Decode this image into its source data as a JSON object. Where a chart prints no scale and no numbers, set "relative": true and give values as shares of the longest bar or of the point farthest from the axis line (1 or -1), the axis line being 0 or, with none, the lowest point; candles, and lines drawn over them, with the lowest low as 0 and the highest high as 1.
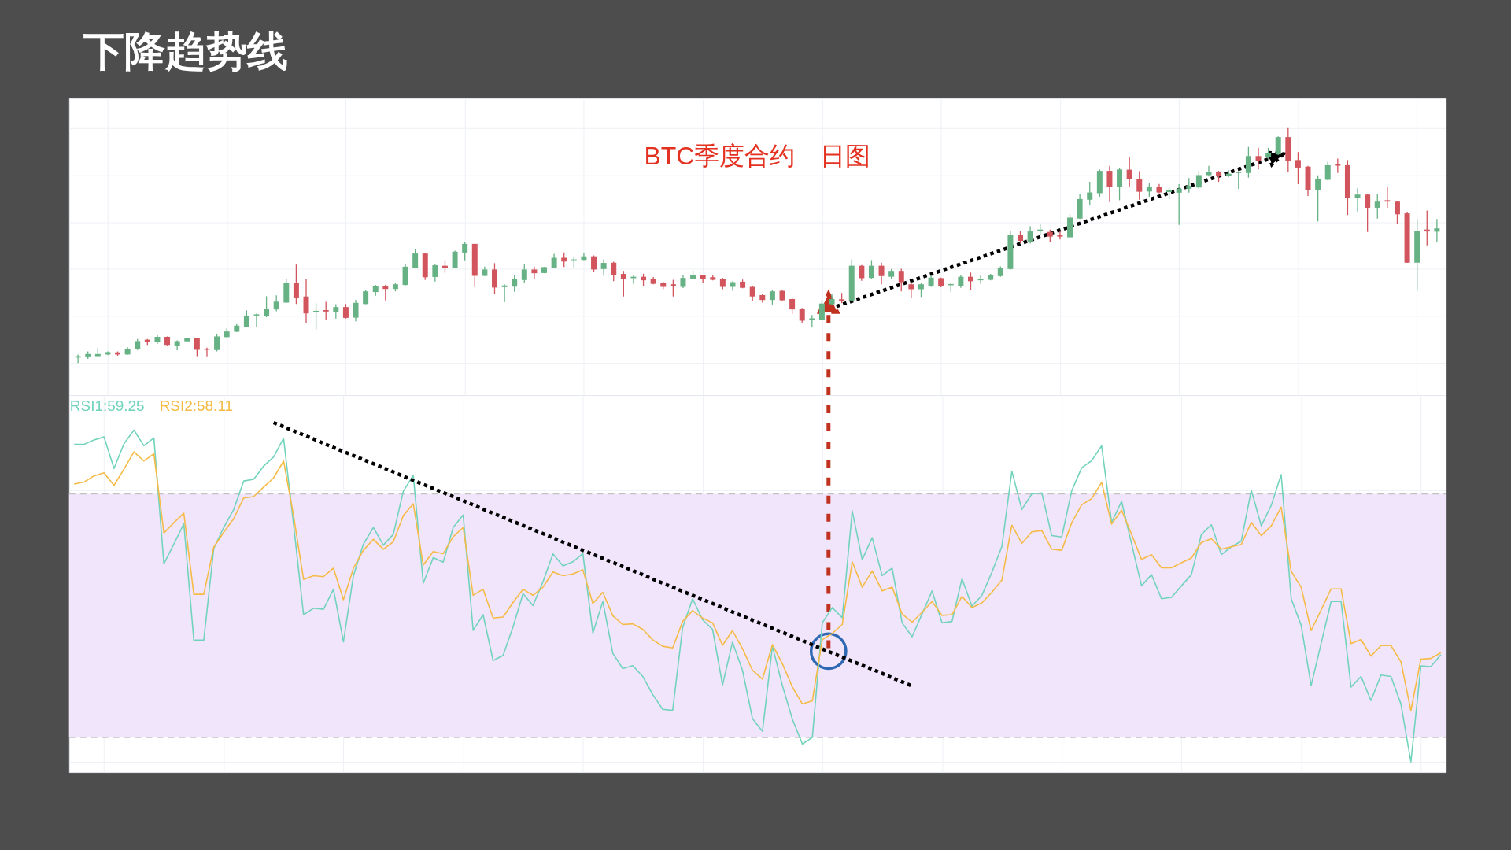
{
  "chart_data": [
    {
      "type": "candlestick",
      "title": "下降趋势线",
      "annotations": [
        "BTC季度合约　日图"
      ],
      "relative": true,
      "grid": true,
      "tick_labels": false,
      "categories": [
        null,
        null,
        null,
        null,
        null,
        null,
        null,
        null,
        null,
        null,
        null,
        null,
        null,
        null,
        null,
        null,
        null,
        null,
        null,
        null,
        null,
        null,
        null,
        null,
        null,
        null,
        null,
        null,
        null,
        null,
        null,
        null,
        null,
        null,
        null,
        null,
        null,
        null,
        null,
        null,
        null,
        null,
        null,
        null,
        null,
        null,
        null,
        null,
        null,
        null,
        null,
        null,
        null,
        null,
        null,
        null,
        null,
        null,
        null,
        null,
        null,
        null,
        null,
        null,
        null,
        null,
        null,
        null,
        null,
        null,
        null,
        null,
        null,
        null,
        null,
        null,
        null,
        null,
        null,
        null,
        null,
        null,
        null,
        null,
        null,
        null,
        null,
        null,
        null,
        null,
        null,
        null,
        null,
        null,
        null,
        null,
        null,
        null,
        null,
        null,
        null,
        null,
        null,
        null,
        null,
        null,
        null,
        null,
        null,
        null,
        null,
        null,
        null,
        null,
        null,
        null,
        null,
        null,
        null,
        null,
        null,
        null,
        null,
        null,
        null,
        null,
        null,
        null,
        null,
        null,
        null,
        null,
        null,
        null,
        null,
        null,
        null,
        null
      ],
      "ohlc": [
        [
          0.023,
          0.036,
          0,
          0.029
        ],
        [
          0.028,
          0.049,
          0.017,
          0.038
        ],
        [
          0.029,
          0.064,
          0.028,
          0.038
        ],
        [
          0.036,
          0.049,
          0.033,
          0.046
        ],
        [
          0.045,
          0.049,
          0.031,
          0.036
        ],
        [
          0.036,
          0.067,
          0.035,
          0.061
        ],
        [
          0.058,
          0.102,
          0.055,
          0.093
        ],
        [
          0.099,
          0.102,
          0.077,
          0.09
        ],
        [
          0.091,
          0.118,
          0.081,
          0.111
        ],
        [
          0.111,
          0.113,
          0.074,
          0.077
        ],
        [
          0.074,
          0.096,
          0.054,
          0.093
        ],
        [
          0.092,
          0.108,
          0.09,
          0.105
        ],
        [
          0.106,
          0.108,
          0.029,
          0.056
        ],
        [
          0.061,
          0.065,
          0.028,
          0.056
        ],
        [
          0.055,
          0.123,
          0.049,
          0.113
        ],
        [
          0.11,
          0.147,
          0.108,
          0.134
        ],
        [
          0.133,
          0.166,
          0.131,
          0.159
        ],
        [
          0.154,
          0.224,
          0.151,
          0.202
        ],
        [
          0.202,
          0.21,
          0.154,
          0.207
        ],
        [
          0.2,
          0.284,
          0.195,
          0.23
        ],
        [
          0.228,
          0.288,
          0.22,
          0.261
        ],
        [
          0.257,
          0.359,
          0.256,
          0.339
        ],
        [
          0.339,
          0.419,
          0.251,
          0.279
        ],
        [
          0.283,
          0.357,
          0.17,
          0.211
        ],
        [
          0.215,
          0.254,
          0.142,
          0.222
        ],
        [
          0.225,
          0.26,
          0.183,
          0.219
        ],
        [
          0.218,
          0.25,
          0.189,
          0.238
        ],
        [
          0.238,
          0.251,
          0.189,
          0.192
        ],
        [
          0.193,
          0.269,
          0.177,
          0.256
        ],
        [
          0.251,
          0.312,
          0.25,
          0.305
        ],
        [
          0.302,
          0.332,
          0.286,
          0.328
        ],
        [
          0.329,
          0.333,
          0.266,
          0.315
        ],
        [
          0.315,
          0.341,
          0.305,
          0.335
        ],
        [
          0.332,
          0.42,
          0.33,
          0.41
        ],
        [
          0.405,
          0.484,
          0.403,
          0.466
        ],
        [
          0.466,
          0.467,
          0.353,
          0.365
        ],
        [
          0.366,
          0.423,
          0.347,
          0.416
        ],
        [
          0.414,
          0.438,
          0.384,
          0.405
        ],
        [
          0.405,
          0.478,
          0.403,
          0.474
        ],
        [
          0.47,
          0.517,
          0.437,
          0.507
        ],
        [
          0.507,
          0.508,
          0.323,
          0.371
        ],
        [
          0.371,
          0.41,
          0.37,
          0.398
        ],
        [
          0.398,
          0.425,
          0.292,
          0.321
        ],
        [
          0.323,
          0.335,
          0.259,
          0.33
        ],
        [
          0.325,
          0.375,
          0.303,
          0.359
        ],
        [
          0.353,
          0.421,
          0.342,
          0.398
        ],
        [
          0.398,
          0.41,
          0.356,
          0.382
        ],
        [
          0.383,
          0.409,
          0.382,
          0.408
        ],
        [
          0.405,
          0.465,
          0.404,
          0.448
        ],
        [
          0.448,
          0.471,
          0.409,
          0.432
        ],
        [
          0.438,
          0.452,
          0.404,
          0.441
        ],
        [
          0.439,
          0.466,
          0.438,
          0.454
        ],
        [
          0.454,
          0.458,
          0.387,
          0.398
        ],
        [
          0.4,
          0.441,
          0.372,
          0.426
        ],
        [
          0.427,
          0.431,
          0.348,
          0.376
        ],
        [
          0.379,
          0.392,
          0.283,
          0.359
        ],
        [
          0.361,
          0.376,
          0.337,
          0.367
        ],
        [
          0.367,
          0.38,
          0.329,
          0.352
        ],
        [
          0.357,
          0.366,
          0.335,
          0.337
        ],
        [
          0.339,
          0.346,
          0.315,
          0.324
        ],
        [
          0.335,
          0.354,
          0.283,
          0.328
        ],
        [
          0.324,
          0.376,
          0.319,
          0.362
        ],
        [
          0.359,
          0.392,
          0.357,
          0.374
        ],
        [
          0.374,
          0.376,
          0.341,
          0.358
        ],
        [
          0.365,
          0.374,
          0.352,
          0.354
        ],
        [
          0.359,
          0.362,
          0.314,
          0.324
        ],
        [
          0.324,
          0.348,
          0.307,
          0.344
        ],
        [
          0.346,
          0.355,
          0.318,
          0.32
        ],
        [
          0.324,
          0.329,
          0.262,
          0.283
        ],
        [
          0.289,
          0.294,
          0.257,
          0.268
        ],
        [
          0.268,
          0.31,
          0.249,
          0.305
        ],
        [
          0.307,
          0.311,
          0.263,
          0.267
        ],
        [
          0.272,
          0.28,
          0.208,
          0.228
        ],
        [
          0.23,
          0.234,
          0.171,
          0.18
        ],
        [
          0.185,
          0.204,
          0.151,
          0.19
        ],
        [
          0.182,
          0.266,
          0.181,
          0.253
        ],
        [
          0.25,
          0.294,
          0.246,
          0.272
        ],
        [
          0.271,
          0.298,
          0.255,
          0.263
        ],
        [
          0.266,
          0.441,
          0.263,
          0.414
        ],
        [
          0.414,
          0.417,
          0.35,
          0.361
        ],
        [
          0.362,
          0.438,
          0.359,
          0.414
        ],
        [
          0.414,
          0.427,
          0.335,
          0.37
        ],
        [
          0.367,
          0.4,
          0.357,
          0.392
        ],
        [
          0.392,
          0.401,
          0.305,
          0.344
        ],
        [
          0.335,
          0.344,
          0.276,
          0.314
        ],
        [
          0.314,
          0.34,
          0.281,
          0.335
        ],
        [
          0.329,
          0.374,
          0.324,
          0.363
        ],
        [
          0.361,
          0.363,
          0.322,
          0.329
        ],
        [
          0.331,
          0.339,
          0.301,
          0.336
        ],
        [
          0.329,
          0.376,
          0.32,
          0.367
        ],
        [
          0.367,
          0.385,
          0.309,
          0.348
        ],
        [
          0.352,
          0.374,
          0.337,
          0.359
        ],
        [
          0.354,
          0.379,
          0.352,
          0.374
        ],
        [
          0.37,
          0.411,
          0.367,
          0.404
        ],
        [
          0.4,
          0.56,
          0.397,
          0.546
        ],
        [
          0.544,
          0.56,
          0.51,
          0.52
        ],
        [
          0.517,
          0.582,
          0.508,
          0.56
        ],
        [
          0.56,
          0.591,
          0.544,
          0.568
        ],
        [
          0.558,
          0.568,
          0.514,
          0.538
        ],
        [
          0.546,
          0.563,
          0.526,
          0.538
        ],
        [
          0.535,
          0.634,
          0.534,
          0.619
        ],
        [
          0.615,
          0.72,
          0.613,
          0.698
        ],
        [
          0.695,
          0.771,
          0.673,
          0.726
        ],
        [
          0.723,
          0.824,
          0.708,
          0.818
        ],
        [
          0.818,
          0.839,
          0.685,
          0.751
        ],
        [
          0.751,
          0.829,
          0.693,
          0.824
        ],
        [
          0.823,
          0.875,
          0.751,
          0.783
        ],
        [
          0.784,
          0.817,
          0.695,
          0.729
        ],
        [
          0.73,
          0.765,
          0.708,
          0.749
        ],
        [
          0.749,
          0.762,
          0.723,
          0.726
        ],
        [
          0.728,
          0.749,
          0.697,
          0.735
        ],
        [
          0.725,
          0.761,
          0.588,
          0.742
        ],
        [
          0.742,
          0.787,
          0.725,
          0.754
        ],
        [
          0.747,
          0.818,
          0.741,
          0.8
        ],
        [
          0.8,
          0.839,
          0.794,
          0.812
        ],
        [
          0.812,
          0.818,
          0.771,
          0.798
        ],
        [
          0.798,
          0.821,
          0.792,
          0.806
        ],
        [
          0.809,
          0.815,
          0.741,
          0.812
        ],
        [
          0.809,
          0.92,
          0.789,
          0.881
        ],
        [
          0.881,
          0.916,
          0.824,
          0.86
        ],
        [
          0.878,
          0.916,
          0.869,
          0.892
        ],
        [
          0.888,
          0.965,
          0.885,
          0.962
        ],
        [
          0.962,
          1,
          0.812,
          0.86
        ],
        [
          0.864,
          0.898,
          0.761,
          0.832
        ],
        [
          0.836,
          0.839,
          0.711,
          0.735
        ],
        [
          0.735,
          0.799,
          0.603,
          0.785
        ],
        [
          0.78,
          0.857,
          0.777,
          0.842
        ],
        [
          0.848,
          0.87,
          0.809,
          0.84
        ],
        [
          0.842,
          0.864,
          0.63,
          0.701
        ],
        [
          0.701,
          0.744,
          0.645,
          0.717
        ],
        [
          0.717,
          0.719,
          0.558,
          0.661
        ],
        [
          0.661,
          0.72,
          0.615,
          0.687
        ],
        [
          0.693,
          0.749,
          0.661,
          0.687
        ],
        [
          0.687,
          0.689,
          0.591,
          0.633
        ],
        [
          0.637,
          0.642,
          0.427,
          0.427
        ],
        [
          0.427,
          0.613,
          0.308,
          0.562
        ],
        [
          0.568,
          0.649,
          0.501,
          0.56
        ],
        [
          0.559,
          0.613,
          0.513,
          0.573
        ]
      ],
      "colors": [
        "#66b285",
        "#66b285",
        "#66b285",
        "#66b285",
        "#d2545c",
        "#66b285",
        "#66b285",
        "#d2545c",
        "#66b285",
        "#d2545c",
        "#66b285",
        "#66b285",
        "#d2545c",
        "#d2545c",
        "#66b285",
        "#66b285",
        "#66b285",
        "#66b285",
        "#66b285",
        "#66b285",
        "#66b285",
        "#66b285",
        "#d2545c",
        "#d2545c",
        "#66b285",
        "#d2545c",
        "#66b285",
        "#d2545c",
        "#66b285",
        "#66b285",
        "#66b285",
        "#d2545c",
        "#66b285",
        "#66b285",
        "#66b285",
        "#d2545c",
        "#66b285",
        "#d2545c",
        "#66b285",
        "#66b285",
        "#d2545c",
        "#66b285",
        "#d2545c",
        "#66b285",
        "#66b285",
        "#66b285",
        "#d2545c",
        "#66b285",
        "#66b285",
        "#d2545c",
        "#66b285",
        "#66b285",
        "#d2545c",
        "#66b285",
        "#d2545c",
        "#d2545c",
        "#66b285",
        "#d2545c",
        "#d2545c",
        "#d2545c",
        "#d2545c",
        "#66b285",
        "#66b285",
        "#d2545c",
        "#d2545c",
        "#d2545c",
        "#66b285",
        "#d2545c",
        "#d2545c",
        "#d2545c",
        "#66b285",
        "#d2545c",
        "#d2545c",
        "#d2545c",
        "#66b285",
        "#66b285",
        "#66b285",
        "#d2545c",
        "#66b285",
        "#d2545c",
        "#66b285",
        "#d2545c",
        "#66b285",
        "#d2545c",
        "#d2545c",
        "#66b285",
        "#66b285",
        "#d2545c",
        "#66b285",
        "#66b285",
        "#d2545c",
        "#66b285",
        "#66b285",
        "#66b285",
        "#66b285",
        "#d2545c",
        "#66b285",
        "#66b285",
        "#d2545c",
        "#d2545c",
        "#66b285",
        "#66b285",
        "#66b285",
        "#66b285",
        "#d2545c",
        "#66b285",
        "#d2545c",
        "#d2545c",
        "#66b285",
        "#d2545c",
        "#66b285",
        "#66b285",
        "#66b285",
        "#66b285",
        "#66b285",
        "#d2545c",
        "#66b285",
        "#66b285",
        "#66b285",
        "#d2545c",
        "#66b285",
        "#66b285",
        "#d2545c",
        "#d2545c",
        "#d2545c",
        "#66b285",
        "#66b285",
        "#d2545c",
        "#d2545c",
        "#66b285",
        "#d2545c",
        "#66b285",
        "#d2545c",
        "#d2545c",
        "#d2545c",
        "#66b285",
        "#d2545c",
        "#66b285"
      ]
    },
    {
      "type": "line",
      "relative": true,
      "grid": true,
      "tick_labels": false,
      "categories": [
        null,
        null,
        null,
        null,
        null,
        null,
        null,
        null,
        null,
        null,
        null,
        null,
        null,
        null,
        null,
        null,
        null,
        null,
        null,
        null,
        null,
        null,
        null,
        null,
        null,
        null,
        null,
        null,
        null,
        null,
        null,
        null,
        null,
        null,
        null,
        null,
        null,
        null,
        null,
        null,
        null,
        null,
        null,
        null,
        null,
        null,
        null,
        null,
        null,
        null,
        null,
        null,
        null,
        null,
        null,
        null,
        null,
        null,
        null,
        null,
        null,
        null,
        null,
        null,
        null,
        null,
        null,
        null,
        null,
        null,
        null,
        null,
        null,
        null,
        null,
        null,
        null,
        null,
        null,
        null,
        null,
        null,
        null,
        null,
        null,
        null,
        null,
        null,
        null,
        null,
        null,
        null,
        null,
        null,
        null,
        null,
        null,
        null,
        null,
        null,
        null,
        null,
        null,
        null,
        null,
        null,
        null,
        null,
        null,
        null,
        null,
        null,
        null,
        null,
        null,
        null,
        null,
        null,
        null,
        null,
        null,
        null,
        null,
        null,
        null,
        null,
        null,
        null,
        null,
        null,
        null,
        null,
        null,
        null,
        null,
        null,
        null,
        null
      ],
      "bands": [
        {
          "axis": "y",
          "from": 0.072,
          "to": 0.79,
          "color": "#f1e5fb"
        }
      ],
      "ref_lines": [
        {
          "axis": "y",
          "value": 0.79,
          "color": "#c2c2c2",
          "line_style": "dashed"
        },
        {
          "axis": "y",
          "value": 0.072,
          "color": "#c2c2c2",
          "line_style": "dashed"
        }
      ],
      "series": [
        {
          "name": "RSI1:59.25",
          "color": "#72d3bd",
          "values": [
            0.936,
            0.936,
            0.949,
            0.958,
            0.865,
            0.938,
            0.978,
            0.932,
            0.955,
            0.584,
            0.642,
            0.702,
            0.359,
            0.359,
            0.629,
            0.691,
            0.744,
            0.828,
            0.833,
            0.872,
            0.899,
            0.954,
            0.7,
            0.434,
            0.453,
            0.45,
            0.509,
            0.354,
            0.549,
            0.642,
            0.691,
            0.639,
            0.671,
            0.798,
            0.845,
            0.527,
            0.602,
            0.589,
            0.691,
            0.728,
            0.388,
            0.434,
            0.299,
            0.314,
            0.398,
            0.496,
            0.461,
            0.531,
            0.613,
            0.578,
            0.59,
            0.614,
            0.38,
            0.473,
            0.32,
            0.275,
            0.284,
            0.252,
            0.199,
            0.155,
            0.152,
            0.396,
            0.481,
            0.419,
            0.391,
            0.227,
            0.353,
            0.27,
            0.128,
            0.09,
            0.341,
            0.225,
            0.126,
            0.053,
            0.072,
            0.41,
            0.455,
            0.425,
            0.74,
            0.596,
            0.661,
            0.549,
            0.571,
            0.41,
            0.369,
            0.436,
            0.504,
            0.41,
            0.414,
            0.54,
            0.459,
            0.491,
            0.559,
            0.635,
            0.857,
            0.744,
            0.79,
            0.793,
            0.667,
            0.663,
            0.799,
            0.867,
            0.888,
            0.932,
            0.706,
            0.768,
            0.643,
            0.519,
            0.552,
            0.481,
            0.485,
            0.519,
            0.552,
            0.671,
            0.699,
            0.611,
            0.634,
            0.651,
            0.801,
            0.696,
            0.756,
            0.847,
            0.481,
            0.403,
            0.225,
            0.349,
            0.473,
            0.473,
            0.221,
            0.252,
            0.181,
            0.256,
            0.252,
            0.171,
            0,
            0.283,
            0.281,
            0.316
          ]
        },
        {
          "name": "RSI2:58.11",
          "color": "#f5bb46",
          "values": [
            0.819,
            0.825,
            0.843,
            0.852,
            0.815,
            0.863,
            0.914,
            0.887,
            0.908,
            0.675,
            0.705,
            0.733,
            0.494,
            0.494,
            0.633,
            0.677,
            0.717,
            0.778,
            0.782,
            0.81,
            0.837,
            0.887,
            0.726,
            0.538,
            0.549,
            0.546,
            0.571,
            0.478,
            0.571,
            0.624,
            0.656,
            0.627,
            0.649,
            0.726,
            0.761,
            0.58,
            0.62,
            0.614,
            0.664,
            0.691,
            0.491,
            0.509,
            0.424,
            0.427,
            0.47,
            0.509,
            0.491,
            0.515,
            0.56,
            0.549,
            0.554,
            0.566,
            0.467,
            0.5,
            0.431,
            0.405,
            0.407,
            0.391,
            0.36,
            0.341,
            0.336,
            0.414,
            0.446,
            0.424,
            0.41,
            0.344,
            0.387,
            0.334,
            0.27,
            0.244,
            0.346,
            0.289,
            0.221,
            0.171,
            0.18,
            0.36,
            0.379,
            0.405,
            0.59,
            0.515,
            0.563,
            0.504,
            0.515,
            0.436,
            0.412,
            0.441,
            0.473,
            0.432,
            0.434,
            0.488,
            0.455,
            0.469,
            0.5,
            0.536,
            0.698,
            0.644,
            0.678,
            0.682,
            0.627,
            0.624,
            0.705,
            0.758,
            0.776,
            0.824,
            0.701,
            0.742,
            0.671,
            0.597,
            0.611,
            0.572,
            0.572,
            0.587,
            0.601,
            0.647,
            0.658,
            0.627,
            0.634,
            0.641,
            0.706,
            0.667,
            0.696,
            0.751,
            0.562,
            0.515,
            0.387,
            0.448,
            0.51,
            0.51,
            0.349,
            0.361,
            0.312,
            0.343,
            0.343,
            0.295,
            0.151,
            0.303,
            0.305,
            0.322
          ]
        },
        {
          "color": "#000000",
          "line_style": "dotted",
          "values": [
            null,
            null,
            null,
            null,
            null,
            null,
            null,
            null,
            null,
            null,
            null,
            null,
            null,
            null,
            null,
            null,
            null,
            null,
            null,
            null,
            1,
            0.988,
            0.976,
            0.964,
            0.952,
            0.939,
            0.927,
            0.915,
            0.903,
            0.891,
            0.879,
            0.867,
            0.855,
            0.842,
            0.83,
            0.818,
            0.806,
            0.794,
            0.782,
            0.77,
            0.758,
            0.745,
            0.733,
            0.721,
            0.709,
            0.697,
            0.685,
            0.673,
            0.661,
            0.648,
            0.636,
            0.624,
            0.612,
            0.6,
            0.588,
            0.576,
            0.564,
            0.552,
            0.539,
            0.527,
            0.515,
            0.503,
            0.491,
            0.479,
            0.467,
            0.455,
            0.442,
            0.43,
            0.418,
            0.406,
            0.394,
            0.382,
            0.37,
            0.358,
            0.345,
            0.333,
            0.321,
            0.309,
            0.297,
            0.285,
            0.273,
            0.261,
            0.248,
            0.236,
            0.224,
            null,
            null,
            null,
            null,
            null,
            null,
            null,
            null,
            null,
            null,
            null,
            null,
            null,
            null,
            null,
            null,
            null,
            null,
            null,
            null,
            null,
            null,
            null,
            null,
            null,
            null,
            null,
            null,
            null,
            null,
            null,
            null,
            null,
            null,
            null,
            null,
            null,
            null,
            null,
            null,
            null,
            null,
            null,
            null,
            null,
            null,
            null,
            null,
            null,
            null,
            null,
            null,
            null
          ]
        }
      ]
    }
  ]
}
